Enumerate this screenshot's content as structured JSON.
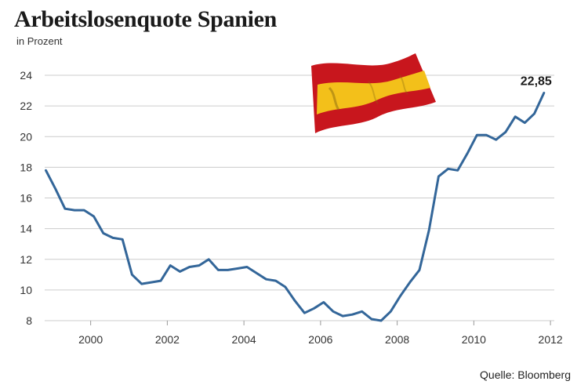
{
  "title": "Arbeitslosenquote Spanien",
  "subtitle": "in Prozent",
  "source": "Quelle: Bloomberg",
  "icon": "spain-flag-icon",
  "colors": {
    "line": "#336699",
    "grid": "#cccccc",
    "flag_red": "#c8161d",
    "flag_yellow": "#f3c01a"
  },
  "chart_data": {
    "type": "line",
    "title": "Arbeitslosenquote Spanien",
    "ylabel": "in Prozent",
    "xlim": [
      1998.8,
      2012.1
    ],
    "ylim": [
      8,
      24
    ],
    "yticks": [
      "8",
      "10",
      "12",
      "14",
      "16",
      "18",
      "20",
      "22",
      "24"
    ],
    "xticks": [
      "2000",
      "2002",
      "2004",
      "2006",
      "2008",
      "2010",
      "2012"
    ],
    "grid": true,
    "last_value_label": "22,85",
    "series": [
      {
        "x": [
          1998.83,
          1999.08,
          1999.33,
          1999.58,
          1999.83,
          2000.08,
          2000.33,
          2000.58,
          2000.83,
          2001.08,
          2001.33,
          2001.58,
          2001.83,
          2002.08,
          2002.33,
          2002.58,
          2002.83,
          2003.08,
          2003.33,
          2003.58,
          2003.83,
          2004.08,
          2004.33,
          2004.58,
          2004.83,
          2005.08,
          2005.33,
          2005.58,
          2005.83,
          2006.08,
          2006.33,
          2006.58,
          2006.83,
          2007.08,
          2007.33,
          2007.58,
          2007.83,
          2008.08,
          2008.33,
          2008.58,
          2008.83,
          2009.08,
          2009.33,
          2009.58,
          2009.83,
          2010.08,
          2010.33,
          2010.58,
          2010.83,
          2011.08,
          2011.33,
          2011.58,
          2011.83
        ],
        "values": [
          17.8,
          16.6,
          15.3,
          15.2,
          15.2,
          14.8,
          13.7,
          13.4,
          13.3,
          11.0,
          10.4,
          10.5,
          10.6,
          11.6,
          11.2,
          11.5,
          11.6,
          12.0,
          11.3,
          11.3,
          11.4,
          11.5,
          11.1,
          10.7,
          10.6,
          10.2,
          9.3,
          8.5,
          8.8,
          9.2,
          8.6,
          8.3,
          8.4,
          8.6,
          8.1,
          8.0,
          8.6,
          9.6,
          10.5,
          11.3,
          13.9,
          17.4,
          17.9,
          17.8,
          18.9,
          20.1,
          20.1,
          19.8,
          20.3,
          21.3,
          20.9,
          21.5,
          22.85
        ]
      }
    ]
  }
}
